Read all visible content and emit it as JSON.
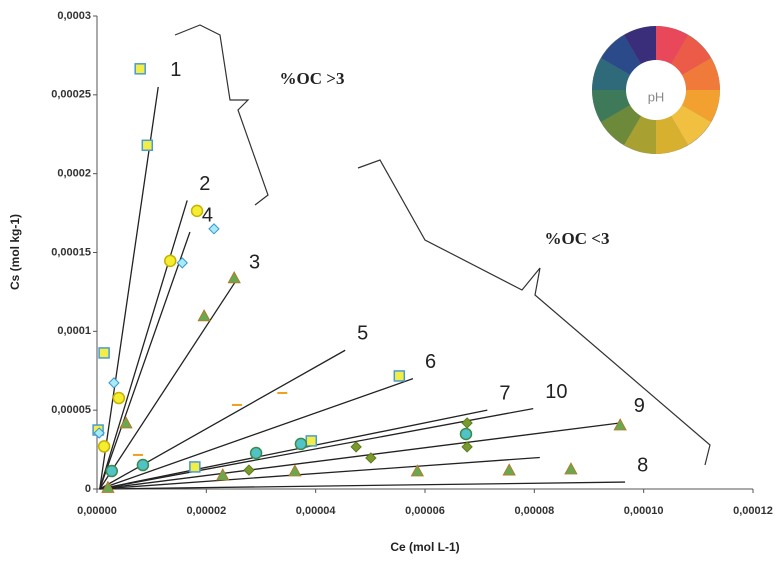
{
  "chart_data": {
    "type": "scatter",
    "x_label": "Ce (mol L-1)",
    "y_label": "Cs (mol kg-1)",
    "xlim": [
      0,
      0.00012
    ],
    "ylim": [
      0,
      0.0003
    ],
    "xticks": [
      {
        "value": 0,
        "label": "0,00000"
      },
      {
        "value": 2e-05,
        "label": "0,00002"
      },
      {
        "value": 4e-05,
        "label": "0,00004"
      },
      {
        "value": 6e-05,
        "label": "0,00006"
      },
      {
        "value": 8e-05,
        "label": "0,00008"
      },
      {
        "value": 0.0001,
        "label": "0,00010"
      },
      {
        "value": 0.00012,
        "label": "0,00012"
      }
    ],
    "yticks": [
      0,
      {
        "value": 5e-05,
        "label": "0,00005"
      },
      {
        "value": 0.0001,
        "label": "0,0001"
      },
      {
        "value": 0.00015,
        "label": "0,00015"
      },
      {
        "value": 0.0002,
        "label": "0,0002"
      },
      {
        "value": 0.00025,
        "label": "0,00025"
      },
      {
        "value": 0.0003,
        "label": "0,0003"
      }
    ],
    "series": [
      {
        "marker": "square",
        "color": "#f2ee45",
        "stroke": "#4a9ad4",
        "x": [
          7.9e-06,
          9.2e-06,
          1.3e-06,
          2e-07,
          3.92e-05,
          5.53e-05,
          1.79e-05
        ],
        "values": [
          0.0002665,
          0.000218,
          8.63e-05,
          3.74e-05,
          3.05e-05,
          7.17e-05,
          1.4e-05
        ]
      },
      {
        "marker": "circle",
        "color": "#f4ee30",
        "stroke": "#c8b000",
        "x": [
          1.83e-05,
          1.34e-05,
          4e-06,
          1.3e-06
        ],
        "values": [
          0.0001764,
          0.0001447,
          5.77e-05,
          2.7e-05
        ]
      },
      {
        "marker": "diamond",
        "color": "#a6ecf7",
        "stroke": "#3a95d0",
        "x": [
          2.14e-05,
          1.56e-05,
          3.1e-06,
          4e-07
        ],
        "values": [
          0.000165,
          0.0001434,
          6.73e-05,
          3.55e-05
        ]
      },
      {
        "marker": "triangle",
        "color": "#6aa84f",
        "stroke": "#c07020",
        "x": [
          2.51e-05,
          1.96e-05,
          5.3e-06,
          2.3e-05,
          3.62e-05,
          5.86e-05,
          7.54e-05,
          8.67e-05,
          9.57e-05,
          2e-06
        ],
        "values": [
          0.0001339,
          0.0001098,
          4.19e-05,
          8.9e-06,
          1.14e-05,
          1.14e-05,
          1.2e-05,
          1.27e-05,
          4.06e-05,
          1e-06
        ]
      },
      {
        "marker": "circle",
        "color": "#4fc3c7",
        "stroke": "#3e8a4a",
        "x": [
          2.7e-06,
          8.4e-06,
          2.91e-05,
          3.73e-05,
          6.75e-05
        ],
        "values": [
          1.14e-05,
          1.52e-05,
          2.28e-05,
          2.86e-05,
          3.49e-05
        ]
      },
      {
        "marker": "diamond",
        "color": "#7a9a2e",
        "stroke": "#5c7a1e",
        "x": [
          4.74e-05,
          5.01e-05,
          6.77e-05,
          6.77e-05,
          2.78e-05
        ],
        "values": [
          2.67e-05,
          1.97e-05,
          2.67e-05,
          4.19e-05,
          1.2e-05
        ]
      },
      {
        "marker": "dash",
        "color": "#f0a020",
        "stroke": "#f0a020",
        "x": [
          7.5e-06,
          2.56e-05,
          3.39e-05
        ],
        "values": [
          2.16e-05,
          5.33e-05,
          6.09e-05
        ]
      }
    ],
    "fit_lines": [
      {
        "label": "1",
        "x": [
          5e-07,
          1.12e-05
        ],
        "values": [
          0,
          0.000255
        ]
      },
      {
        "label": "2",
        "x": [
          5e-07,
          1.65e-05
        ],
        "values": [
          0,
          0.000183
        ]
      },
      {
        "label": "4",
        "x": [
          5e-07,
          1.7e-05
        ],
        "values": [
          0,
          0.000163
        ]
      },
      {
        "label": "3",
        "x": [
          5e-07,
          2.56e-05
        ],
        "values": [
          0,
          0.000133
        ]
      },
      {
        "label": "5",
        "x": [
          5e-07,
          4.54e-05
        ],
        "values": [
          0,
          8.8e-05
        ]
      },
      {
        "label": "6",
        "x": [
          5e-07,
          5.78e-05
        ],
        "values": [
          0,
          7e-05
        ]
      },
      {
        "label": "7",
        "x": [
          5e-07,
          7.14e-05
        ],
        "values": [
          0,
          5e-05
        ]
      },
      {
        "label": "10",
        "x": [
          5e-07,
          7.98e-05
        ],
        "values": [
          0,
          5.1e-05
        ]
      },
      {
        "label": "9",
        "x": [
          5e-07,
          9.6e-05
        ],
        "values": [
          0,
          4.2e-05
        ]
      },
      {
        "label": null,
        "x": [
          5e-07,
          8.1e-05
        ],
        "values": [
          0,
          2e-05
        ]
      },
      {
        "label": "8",
        "x": [
          5e-07,
          9.66e-05
        ],
        "values": [
          0,
          4.4e-06
        ]
      }
    ],
    "annotations": [
      "%OC >3",
      "%OC <3"
    ],
    "wheel_label": "pH"
  }
}
